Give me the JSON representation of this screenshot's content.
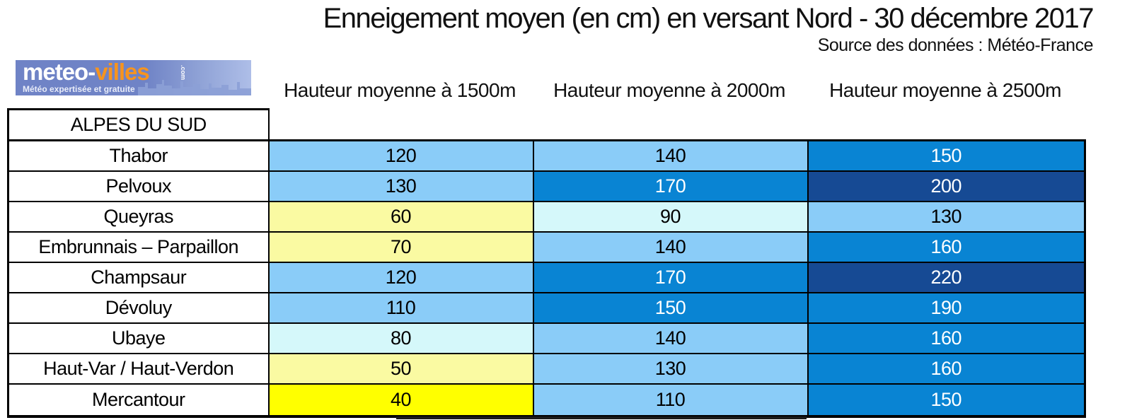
{
  "page": {
    "title": "Enneigement moyen (en cm) en versant Nord - 30 décembre 2017",
    "source": "Source des données : Météo-France"
  },
  "logo": {
    "brand_prefix": "meteo-",
    "brand_suffix": "villes",
    "brand_tld": ".com",
    "tagline": "Météo expertisée et gratuite",
    "colors": {
      "background": "#6F83C6",
      "background_light": "#AEBEE8",
      "prefix_text": "#FFFFFF",
      "suffix_text": "#F7941E"
    }
  },
  "chart_data": {
    "type": "table",
    "title": "Enneigement moyen (en cm) en versant Nord - 30 décembre 2017",
    "subtitle": "Source des données : Météo-France",
    "region": "ALPES DU SUD",
    "columns": [
      "Hauteur moyenne à 1500m",
      "Hauteur moyenne à 2000m",
      "Hauteur moyenne à 2500m"
    ],
    "unit": "cm",
    "rows": [
      {
        "name": "Thabor",
        "values": [
          120,
          140,
          150
        ]
      },
      {
        "name": "Pelvoux",
        "values": [
          130,
          170,
          200
        ]
      },
      {
        "name": "Queyras",
        "values": [
          60,
          90,
          130
        ]
      },
      {
        "name": "Embrunnais – Parpaillon",
        "values": [
          70,
          140,
          160
        ]
      },
      {
        "name": "Champsaur",
        "values": [
          120,
          170,
          220
        ]
      },
      {
        "name": "Dévoluy",
        "values": [
          110,
          150,
          190
        ]
      },
      {
        "name": "Ubaye",
        "values": [
          80,
          140,
          160
        ]
      },
      {
        "name": "Haut-Var / Haut-Verdon",
        "values": [
          50,
          130,
          160
        ]
      },
      {
        "name": "Mercantour",
        "values": [
          40,
          110,
          150
        ]
      }
    ]
  },
  "table": {
    "value_colors": {
      "40": {
        "bg": "#FFFF00",
        "fg": "#000000"
      },
      "50": {
        "bg": "#FAFAA2",
        "fg": "#000000"
      },
      "60": {
        "bg": "#FAFAA2",
        "fg": "#000000"
      },
      "70": {
        "bg": "#FAFAA2",
        "fg": "#000000"
      },
      "80": {
        "bg": "#D5F8FA",
        "fg": "#000000"
      },
      "90": {
        "bg": "#D5F8FA",
        "fg": "#000000"
      },
      "110": {
        "bg": "#8ACCF8",
        "fg": "#000000"
      },
      "120": {
        "bg": "#8ACCF8",
        "fg": "#000000"
      },
      "130": {
        "bg": "#8ACCF8",
        "fg": "#000000"
      },
      "140": {
        "bg": "#8ACCF8",
        "fg": "#000000"
      },
      "150": {
        "bg": "#0984D3",
        "fg": "#FFFFFF"
      },
      "160": {
        "bg": "#0984D3",
        "fg": "#FFFFFF"
      },
      "170": {
        "bg": "#0984D3",
        "fg": "#FFFFFF"
      },
      "190": {
        "bg": "#0984D3",
        "fg": "#FFFFFF"
      },
      "200": {
        "bg": "#164A94",
        "fg": "#FFFFFF"
      },
      "220": {
        "bg": "#164A94",
        "fg": "#FFFFFF"
      }
    }
  }
}
